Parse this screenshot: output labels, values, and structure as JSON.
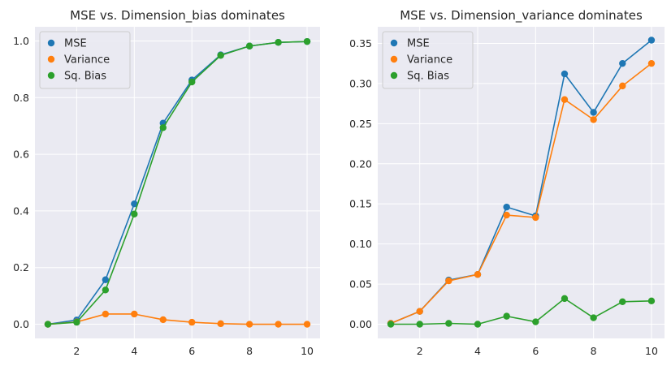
{
  "colors": {
    "background": "#ffffff",
    "axes_facecolor": "#eaeaf2",
    "grid": "#ffffff",
    "text": "#262626",
    "mse": "#1f77b4",
    "variance": "#ff7f0e",
    "sq_bias": "#2ca02c"
  },
  "chart_data": [
    {
      "type": "line",
      "title": "MSE vs. Dimension_bias dominates",
      "xlabel": "",
      "ylabel": "",
      "x": [
        1,
        2,
        3,
        4,
        5,
        6,
        7,
        8,
        9,
        10
      ],
      "xlim": [
        0.55,
        10.45
      ],
      "ylim": [
        -0.05,
        1.05
      ],
      "xticks": [
        2,
        4,
        6,
        8,
        10
      ],
      "yticks": [
        0.0,
        0.2,
        0.4,
        0.6,
        0.8,
        1.0
      ],
      "xtick_labels": [
        "2",
        "4",
        "6",
        "8",
        "10"
      ],
      "ytick_labels": [
        "0.0",
        "0.2",
        "0.4",
        "0.6",
        "0.8",
        "1.0"
      ],
      "grid": true,
      "markers": true,
      "legend": "top-left",
      "series": [
        {
          "name": "MSE",
          "color_key": "mse",
          "values": [
            0.0,
            0.015,
            0.157,
            0.425,
            0.71,
            0.862,
            0.951,
            0.982,
            0.995,
            0.998
          ]
        },
        {
          "name": "Variance",
          "color_key": "variance",
          "values": [
            0.0,
            0.008,
            0.036,
            0.036,
            0.016,
            0.007,
            0.002,
            0.0,
            0.0,
            0.0
          ]
        },
        {
          "name": "Sq. Bias",
          "color_key": "sq_bias",
          "values": [
            0.0,
            0.007,
            0.121,
            0.389,
            0.694,
            0.855,
            0.949,
            0.982,
            0.995,
            0.998
          ]
        }
      ]
    },
    {
      "type": "line",
      "title": "MSE vs. Dimension_variance dominates",
      "xlabel": "",
      "ylabel": "",
      "x": [
        1,
        2,
        3,
        4,
        5,
        6,
        7,
        8,
        9,
        10
      ],
      "xlim": [
        0.55,
        10.45
      ],
      "ylim": [
        -0.0177,
        0.3707
      ],
      "xticks": [
        2,
        4,
        6,
        8,
        10
      ],
      "yticks": [
        0.0,
        0.05,
        0.1,
        0.15,
        0.2,
        0.25,
        0.3,
        0.35
      ],
      "xtick_labels": [
        "2",
        "4",
        "6",
        "8",
        "10"
      ],
      "ytick_labels": [
        "0.00",
        "0.05",
        "0.10",
        "0.15",
        "0.20",
        "0.25",
        "0.30",
        "0.35"
      ],
      "grid": true,
      "markers": true,
      "legend": "top-left",
      "series": [
        {
          "name": "MSE",
          "color_key": "mse",
          "values": [
            0.001,
            0.016,
            0.055,
            0.062,
            0.146,
            0.135,
            0.312,
            0.264,
            0.325,
            0.354
          ]
        },
        {
          "name": "Variance",
          "color_key": "variance",
          "values": [
            0.001,
            0.016,
            0.054,
            0.062,
            0.136,
            0.133,
            0.28,
            0.255,
            0.297,
            0.325
          ]
        },
        {
          "name": "Sq. Bias",
          "color_key": "sq_bias",
          "values": [
            0.0,
            0.0,
            0.001,
            0.0,
            0.01,
            0.003,
            0.032,
            0.008,
            0.028,
            0.029
          ]
        }
      ]
    }
  ]
}
